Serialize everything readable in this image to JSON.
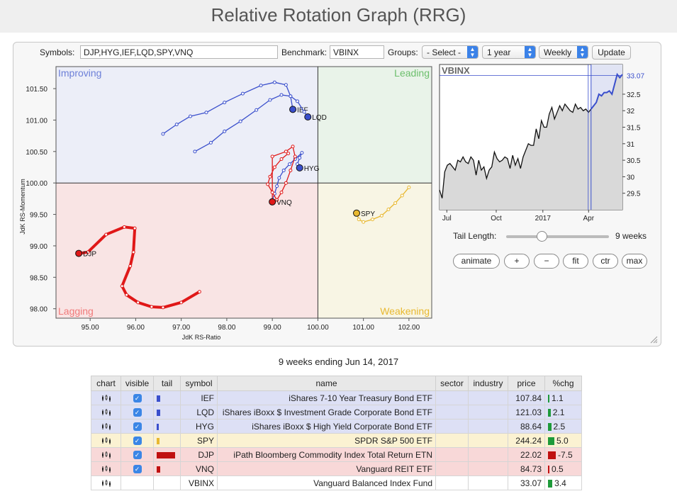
{
  "page": {
    "title": "Relative Rotation Graph (RRG)"
  },
  "controls": {
    "symbols_label": "Symbols:",
    "symbols_value": "DJP,HYG,IEF,LQD,SPY,VNQ",
    "benchmark_label": "Benchmark:",
    "benchmark_value": "VBINX",
    "groups_label": "Groups:",
    "groups_value": "- Select -",
    "period_value": "1 year",
    "frequency_value": "Weekly",
    "update_label": "Update"
  },
  "rrg": {
    "xlabel": "JdK RS-Ratio",
    "ylabel": "JdK RS-Momentum",
    "xlim": [
      94.25,
      102.5
    ],
    "ylim": [
      97.85,
      101.85
    ],
    "x_ticks": [
      "95.00",
      "96.00",
      "97.00",
      "98.00",
      "99.00",
      "100.00",
      "101.00",
      "102.00"
    ],
    "y_ticks": [
      "98.00",
      "98.50",
      "99.00",
      "99.50",
      "100.00",
      "100.50",
      "101.00",
      "101.50"
    ],
    "quadrants": {
      "improving": "Improving",
      "leading": "Leading",
      "lagging": "Lagging",
      "weakening": "Weakening"
    },
    "colors": {
      "improving": "#6c7fd8",
      "leading": "#6cbf6c",
      "lagging": "#f07a7a",
      "weakening": "#e8b830"
    }
  },
  "chart_data": [
    {
      "type": "scatter",
      "xlabel": "JdK RS-Ratio",
      "ylabel": "JdK RS-Momentum",
      "series": [
        {
          "name": "IEF",
          "color": "#3a4fcc",
          "points": [
            [
              96.6,
              100.78
            ],
            [
              96.9,
              100.93
            ],
            [
              97.2,
              101.06
            ],
            [
              97.55,
              101.12
            ],
            [
              97.95,
              101.28
            ],
            [
              98.35,
              101.42
            ],
            [
              98.75,
              101.55
            ],
            [
              99.05,
              101.6
            ],
            [
              99.3,
              101.56
            ],
            [
              99.4,
              101.38
            ],
            [
              99.45,
              101.17
            ]
          ]
        },
        {
          "name": "LQD",
          "color": "#3a4fcc",
          "points": [
            [
              97.3,
              100.5
            ],
            [
              97.65,
              100.64
            ],
            [
              97.95,
              100.82
            ],
            [
              98.3,
              100.98
            ],
            [
              98.65,
              101.16
            ],
            [
              98.95,
              101.32
            ],
            [
              99.2,
              101.4
            ],
            [
              99.4,
              101.38
            ],
            [
              99.55,
              101.3
            ],
            [
              99.7,
              101.13
            ],
            [
              99.78,
              101.05
            ]
          ]
        },
        {
          "name": "HYG",
          "color": "#3a4fcc",
          "points": [
            [
              99.0,
              99.73
            ],
            [
              99.05,
              99.83
            ],
            [
              99.1,
              99.95
            ],
            [
              99.15,
              100.08
            ],
            [
              99.25,
              100.2
            ],
            [
              99.38,
              100.3
            ],
            [
              99.5,
              100.38
            ],
            [
              99.65,
              100.48
            ],
            [
              99.6,
              100.4
            ],
            [
              99.55,
              100.3
            ],
            [
              99.6,
              100.24
            ]
          ]
        },
        {
          "name": "SPY",
          "color": "#e8b830",
          "points": [
            [
              102.0,
              99.93
            ],
            [
              101.85,
              99.8
            ],
            [
              101.7,
              99.68
            ],
            [
              101.55,
              99.58
            ],
            [
              101.4,
              99.48
            ],
            [
              101.2,
              99.42
            ],
            [
              101.0,
              99.38
            ],
            [
              100.9,
              99.42
            ],
            [
              100.85,
              99.52
            ]
          ]
        },
        {
          "name": "DJP",
          "color": "#e01818",
          "points": [
            [
              97.4,
              98.27
            ],
            [
              97.0,
              98.1
            ],
            [
              96.6,
              98.02
            ],
            [
              96.35,
              98.03
            ],
            [
              96.05,
              98.1
            ],
            [
              95.8,
              98.22
            ],
            [
              95.7,
              98.36
            ],
            [
              95.88,
              98.68
            ],
            [
              95.95,
              98.9
            ],
            [
              95.98,
              99.28
            ],
            [
              95.75,
              99.3
            ],
            [
              95.35,
              99.18
            ],
            [
              94.95,
              98.9
            ],
            [
              94.75,
              98.88
            ]
          ]
        },
        {
          "name": "VNQ",
          "color": "#e01818",
          "points": [
            [
              99.35,
              100.47
            ],
            [
              99.2,
              100.38
            ],
            [
              99.05,
              100.25
            ],
            [
              98.95,
              100.1
            ],
            [
              98.9,
              99.98
            ],
            [
              99.0,
              99.85
            ],
            [
              99.1,
              99.73
            ],
            [
              99.2,
              99.85
            ],
            [
              99.3,
              100.0
            ],
            [
              99.4,
              100.2
            ],
            [
              99.5,
              100.42
            ],
            [
              99.45,
              100.58
            ],
            [
              99.3,
              100.5
            ],
            [
              99.0,
              100.42
            ],
            [
              99.0,
              99.7
            ]
          ]
        }
      ]
    },
    {
      "type": "line",
      "title": "VBINX",
      "x_tick_labels": [
        "Jul",
        "Oct",
        "2017",
        "Apr"
      ],
      "y_ticks": [
        29.5,
        30,
        30.5,
        31,
        31.5,
        32,
        32.5
      ],
      "ylim": [
        29.0,
        33.4
      ],
      "last_value": "33.07",
      "values": [
        29.6,
        29.35,
        30.15,
        30.35,
        30.4,
        30.3,
        30.2,
        30.5,
        30.45,
        30.6,
        30.45,
        30.4,
        30.6,
        30.5,
        30.05,
        30.5,
        30.2,
        30.3,
        29.95,
        30.2,
        30.3,
        30.75,
        30.55,
        30.45,
        30.5,
        30.6,
        30.55,
        30.25,
        30.65,
        30.35,
        30.55,
        30.25,
        30.6,
        30.8,
        31.0,
        30.95,
        30.95,
        31.45,
        31.15,
        31.7,
        31.5,
        31.5,
        31.9,
        32.1,
        31.75,
        31.95,
        32.15,
        32.0,
        32.2,
        32.1,
        32.0,
        31.95,
        32.2,
        32.05,
        32.1,
        32.0,
        32.05,
        31.95,
        32.05,
        32.15,
        32.25,
        32.5,
        32.45,
        32.55,
        32.55,
        32.6,
        32.5,
        32.8,
        33.1,
        33.0,
        33.1
      ]
    }
  ],
  "tail": {
    "label": "Tail Length:",
    "value_text": "9 weeks",
    "weeks": 9,
    "max_weeks": 26
  },
  "buttons": {
    "animate": "animate",
    "plus": "+",
    "minus": "−",
    "fit": "fit",
    "ctr": "ctr",
    "max": "max"
  },
  "table": {
    "subtitle": "9 weeks ending Jun 14, 2017",
    "headers": {
      "chart": "chart",
      "visible": "visible",
      "tail": "tail",
      "symbol": "symbol",
      "name": "name",
      "sector": "sector",
      "industry": "industry",
      "price": "price",
      "chg": "%chg"
    },
    "rows": [
      {
        "symbol": "IEF",
        "name": "iShares 7-10 Year Treasury Bond ETF",
        "price": "107.84",
        "chg": "1.1",
        "chg_color": "#1e9a3a",
        "tail_color": "#3a4fcc",
        "tail_width": 5,
        "row_color": "#dde0f5",
        "visible": true
      },
      {
        "symbol": "LQD",
        "name": "iShares iBoxx $ Investment Grade Corporate Bond ETF",
        "price": "121.03",
        "chg": "2.1",
        "chg_color": "#1e9a3a",
        "tail_color": "#3a4fcc",
        "tail_width": 5,
        "row_color": "#dde0f5",
        "visible": true
      },
      {
        "symbol": "HYG",
        "name": "iShares iBoxx $ High Yield Corporate Bond ETF",
        "price": "88.64",
        "chg": "2.5",
        "chg_color": "#1e9a3a",
        "tail_color": "#3a4fcc",
        "tail_width": 3,
        "row_color": "#dde0f5",
        "visible": true
      },
      {
        "symbol": "SPY",
        "name": "SPDR S&P 500 ETF",
        "price": "244.24",
        "chg": "5.0",
        "chg_color": "#1e9a3a",
        "tail_color": "#e8b830",
        "tail_width": 4,
        "row_color": "#fbf2d2",
        "visible": true
      },
      {
        "symbol": "DJP",
        "name": "iPath Bloomberg Commodity Index Total Return ETN",
        "price": "22.02",
        "chg": "-7.5",
        "chg_color": "#c01010",
        "tail_color": "#c01010",
        "tail_width": 26,
        "row_color": "#f8d8d8",
        "visible": true
      },
      {
        "symbol": "VNQ",
        "name": "Vanguard REIT ETF",
        "price": "84.73",
        "chg": "0.5",
        "chg_color": "#c01010",
        "tail_color": "#c01010",
        "tail_width": 5,
        "row_color": "#f8d8d8",
        "visible": true
      },
      {
        "symbol": "VBINX",
        "name": "Vanguard Balanced Index Fund",
        "price": "33.07",
        "chg": "3.4",
        "chg_color": "#1e9a3a",
        "tail_color": "",
        "tail_width": 0,
        "row_color": "#ffffff",
        "visible": false
      }
    ]
  }
}
